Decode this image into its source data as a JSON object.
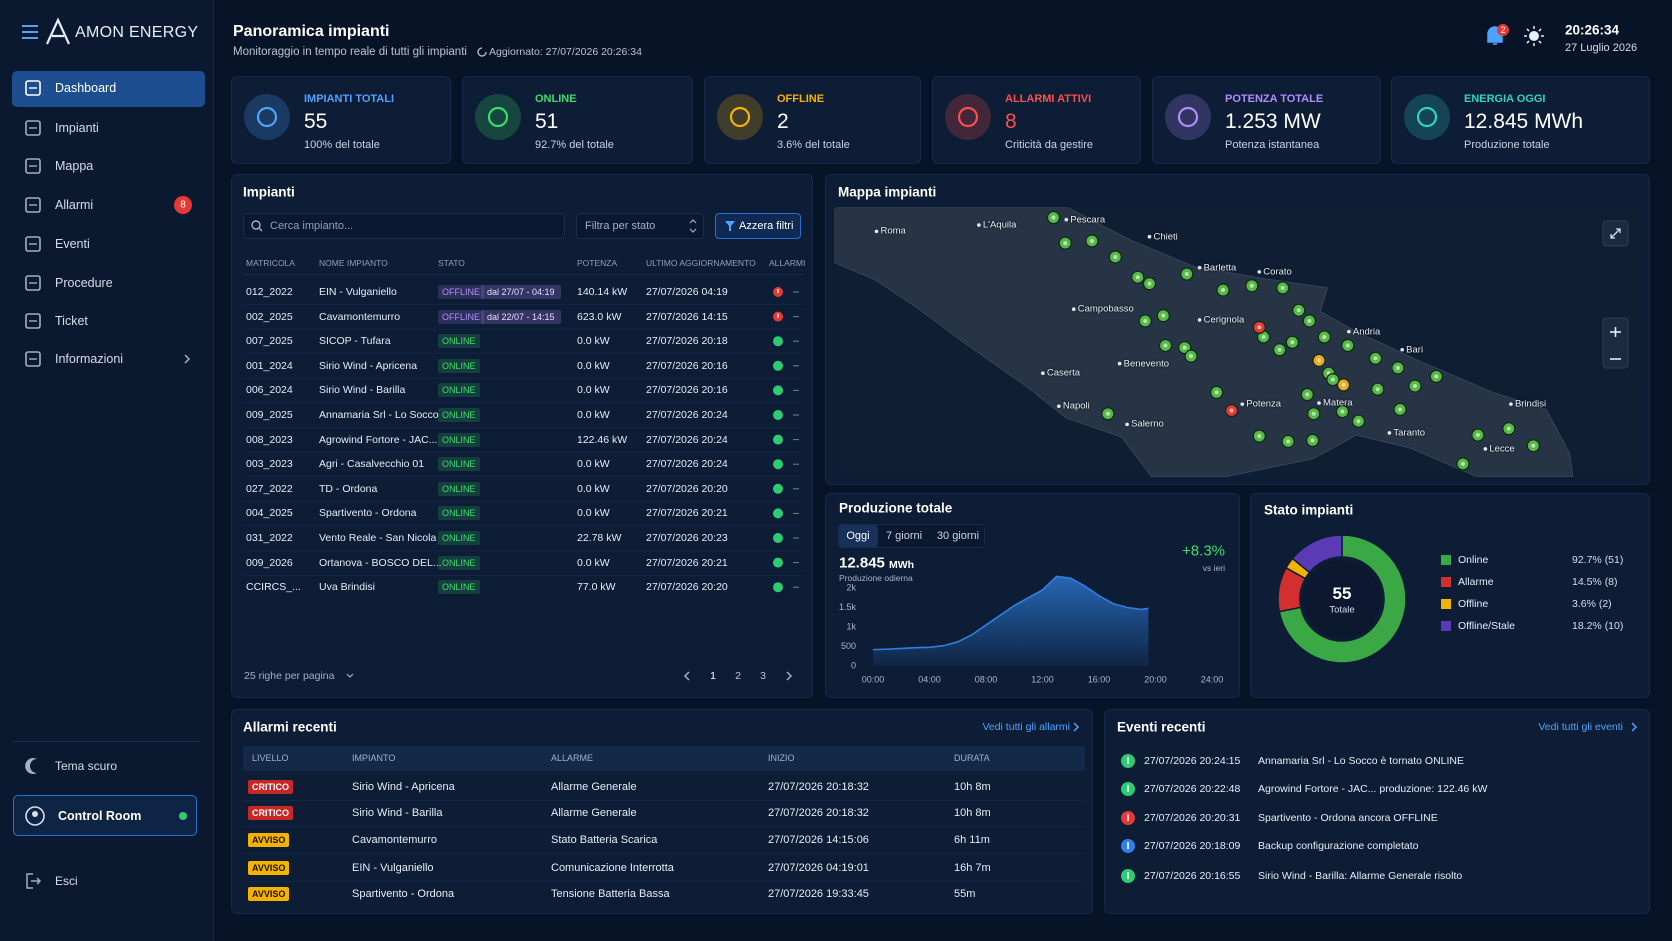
{
  "brand": "AMON ENERGY",
  "nav": [
    {
      "label": "Dashboard",
      "active": true
    },
    {
      "label": "Impianti"
    },
    {
      "label": "Mappa"
    },
    {
      "label": "Allarmi",
      "badge": "8"
    },
    {
      "label": "Eventi"
    },
    {
      "label": "Procedure"
    },
    {
      "label": "Ticket"
    },
    {
      "label": "Informazioni"
    }
  ],
  "sidebar_footer": {
    "theme": "Tema scuro",
    "user": "Control Room",
    "logout": "Esci"
  },
  "header": {
    "title": "Panoramica impianti",
    "subtitle": "Monitoraggio in tempo reale di tutti gli impianti",
    "updated": "Aggiornato: 27/07/2026 20:26:34",
    "notifications": "2",
    "time": "20:26:34",
    "date": "27 Luglio 2026"
  },
  "kpis": [
    {
      "label": "IMPIANTI TOTALI",
      "value": "55",
      "note": "100% del totale",
      "color": "#4da3ff"
    },
    {
      "label": "ONLINE",
      "value": "51",
      "note": "92.7% del totale",
      "color": "#3ddc6a"
    },
    {
      "label": "OFFLINE",
      "value": "2",
      "note": "3.6% del totale",
      "color": "#f5b301"
    },
    {
      "label": "ALLARMI ATTIVI",
      "value": "8",
      "note": "Criticità da gestire",
      "color": "#ff4d4d",
      "value_color": "#ff4d4d"
    },
    {
      "label": "POTENZA TOTALE",
      "value": "1.253 MW",
      "note": "Potenza istantanea",
      "color": "#b08cff"
    },
    {
      "label": "ENERGIA OGGI",
      "value": "12.845 MWh",
      "note": "Produzione totale",
      "color": "#2ed3c6"
    }
  ],
  "plants": {
    "title": "Impianti",
    "search": "Cerca impianto...",
    "filter": "Filtra per stato",
    "reset": "Azzera filtri",
    "columns": [
      "MATRICOLA",
      "NOME IMPIANTO",
      "STATO",
      "POTENZA",
      "ULTIMO AGGIORNAMENTO",
      "ALLARMI"
    ],
    "rows": [
      {
        "id": "012_2022",
        "name": "EIN - Vulganiello",
        "status": "OFFLINE",
        "since": "dal 27/07 - 04:19",
        "power": "140.14 kW",
        "updated": "27/07/2026 04:19",
        "color": "#b48cff",
        "alarm_color": "#e53935"
      },
      {
        "id": "002_2025",
        "name": "Cavamontemurro",
        "status": "OFFLINE",
        "since": "dal 22/07 - 14:15",
        "power": "623.0 kW",
        "updated": "27/07/2026 14:15",
        "color": "#b48cff",
        "alarm_color": "#e53935"
      },
      {
        "id": "007_2025",
        "name": "SICOP - Tufara",
        "status": "ONLINE",
        "power": "0.0 kW",
        "updated": "27/07/2026 20:18",
        "color": "#3ddc6a",
        "alarm_color": "#2ecc71"
      },
      {
        "id": "001_2024",
        "name": "Sirio Wind - Apricena",
        "status": "ONLINE",
        "power": "0.0 kW",
        "updated": "27/07/2026 20:16",
        "color": "#3ddc6a",
        "alarm_color": "#2ecc71"
      },
      {
        "id": "006_2024",
        "name": "Sirio Wind - Barilla",
        "status": "ONLINE",
        "power": "0.0 kW",
        "updated": "27/07/2026 20:16",
        "color": "#3ddc6a",
        "alarm_color": "#2ecc71"
      },
      {
        "id": "009_2025",
        "name": "Annamaria Srl - Lo Socco",
        "status": "ONLINE",
        "power": "0.0 kW",
        "updated": "27/07/2026 20:24",
        "color": "#3ddc6a",
        "alarm_color": "#2ecc71"
      },
      {
        "id": "008_2023",
        "name": "Agrowind Fortore - JAC...",
        "status": "ONLINE",
        "power": "122.46 kW",
        "updated": "27/07/2026 20:24",
        "color": "#3ddc6a",
        "alarm_color": "#2ecc71"
      },
      {
        "id": "003_2023",
        "name": "Agri - Casalvecchio 01",
        "status": "ONLINE",
        "power": "0.0 kW",
        "updated": "27/07/2026 20:24",
        "color": "#3ddc6a",
        "alarm_color": "#2ecc71"
      },
      {
        "id": "027_2022",
        "name": "TD - Ordona",
        "status": "ONLINE",
        "power": "0.0 kW",
        "updated": "27/07/2026 20:20",
        "color": "#3ddc6a",
        "alarm_color": "#2ecc71"
      },
      {
        "id": "004_2025",
        "name": "Spartivento - Ordona",
        "status": "ONLINE",
        "power": "0.0 kW",
        "updated": "27/07/2026 20:21",
        "color": "#3ddc6a",
        "alarm_color": "#2ecc71"
      },
      {
        "id": "031_2022",
        "name": "Vento Reale - San Nicola",
        "status": "ONLINE",
        "power": "22.78 kW",
        "updated": "27/07/2026 20:23",
        "color": "#3ddc6a",
        "alarm_color": "#2ecc71"
      },
      {
        "id": "009_2026",
        "name": "Ortanova - BOSCO DEL...",
        "status": "ONLINE",
        "power": "0.0 kW",
        "updated": "27/07/2026 20:21",
        "color": "#3ddc6a",
        "alarm_color": "#2ecc71"
      },
      {
        "id": "CCIRCS_...",
        "name": "Uva Brindisi",
        "status": "ONLINE",
        "power": "77.0 kW",
        "updated": "27/07/2026 20:20",
        "color": "#3ddc6a",
        "alarm_color": "#2ecc71"
      }
    ],
    "page_size": "25 righe per pagina",
    "pages": [
      "1",
      "2",
      "3"
    ]
  },
  "map": {
    "title": "Mappa impianti",
    "cities": [
      "Roma",
      "L'Aquila",
      "Pescara",
      "Chieti",
      "Barletta",
      "Corato",
      "Campobasso",
      "Cerignola",
      "Andria",
      "Bari",
      "Caserta",
      "Benevento",
      "Napoli",
      "Potenza",
      "Matera",
      "Salerno",
      "Brindisi",
      "Taranto",
      "Lecce"
    ]
  },
  "chart_data": [
    {
      "type": "area",
      "title": "Produzione totale",
      "tabs": [
        "Oggi",
        "7 giorni",
        "30 giorni"
      ],
      "total": "12.845",
      "unit": "MWh",
      "total_label": "Produzione odierna",
      "change": "+8.3%",
      "change_label": "vs ieri",
      "x": [
        0,
        1,
        2,
        3,
        4,
        5,
        6,
        7,
        8,
        9,
        10,
        11,
        12,
        13,
        14,
        15,
        16,
        17,
        18,
        19,
        19.5
      ],
      "values": [
        420,
        430,
        450,
        470,
        480,
        520,
        620,
        800,
        1050,
        1300,
        1550,
        1750,
        1950,
        2300,
        2250,
        2050,
        1800,
        1600,
        1500,
        1450,
        1480
      ],
      "color": "#2f7fe0",
      "xlim": [
        0,
        24
      ],
      "xticks": [
        {
          "value": 0,
          "label": "00:00"
        },
        {
          "value": 4,
          "label": "04:00"
        },
        {
          "value": 8,
          "label": "08:00"
        },
        {
          "value": 12,
          "label": "12:00"
        },
        {
          "value": 16,
          "label": "16:00"
        },
        {
          "value": 20,
          "label": "20:00"
        },
        {
          "value": 24,
          "label": "24:00"
        }
      ],
      "ylim": [
        0,
        2500
      ],
      "yticks": [
        0,
        500,
        {
          "value": 1000,
          "label": "1k"
        },
        {
          "value": 1500,
          "label": "1.5k"
        },
        {
          "value": 2000,
          "label": "2k"
        }
      ]
    },
    {
      "type": "donut",
      "title": "Stato impianti",
      "center_value": "55",
      "center_label": "Totale",
      "categories": [
        "Online",
        "Allarme",
        "Offline",
        "Offline/Stale"
      ],
      "values": [
        51,
        8,
        2,
        10
      ],
      "value_labels": [
        "92.7% (51)",
        "14.5% (8)",
        "3.6% (2)",
        "18.2% (10)"
      ],
      "colors": [
        "#3aa845",
        "#d32f2f",
        "#f5b301",
        "#5b3bb5"
      ]
    }
  ],
  "alarms": {
    "title": "Allarmi recenti",
    "link": "Vedi tutti gli allarmi",
    "columns": [
      "LIVELLO",
      "IMPIANTO",
      "ALLARME",
      "INIZIO",
      "DURATA"
    ],
    "rows": [
      {
        "level": "CRITICO",
        "color": "#c62828",
        "plant": "Sirio Wind - Apricena",
        "alarm": "Allarme Generale",
        "start": "27/07/2026 20:18:32",
        "duration": "10h 8m"
      },
      {
        "level": "CRITICO",
        "color": "#c62828",
        "plant": "Sirio Wind - Barilla",
        "alarm": "Allarme Generale",
        "start": "27/07/2026 20:18:32",
        "duration": "10h 8m"
      },
      {
        "level": "AVVISO",
        "color": "#f5b301",
        "plant": "Cavamontemurro",
        "alarm": "Stato Batteria Scarica",
        "start": "27/07/2026 14:15:06",
        "duration": "6h 11m"
      },
      {
        "level": "AVVISO",
        "color": "#f5b301",
        "plant": "EIN - Vulganiello",
        "alarm": "Comunicazione Interrotta",
        "start": "27/07/2026 04:19:01",
        "duration": "16h 7m"
      },
      {
        "level": "AVVISO",
        "color": "#f5b301",
        "plant": "Spartivento - Ordona",
        "alarm": "Tensione Batteria Bassa",
        "start": "27/07/2026 19:33:45",
        "duration": "55m"
      }
    ]
  },
  "events": {
    "title": "Eventi recenti",
    "link": "Vedi tutti gli eventi",
    "rows": [
      {
        "time": "27/07/2026 20:24:15",
        "text": "Annamaria Srl - Lo Socco è tornato ONLINE",
        "color": "#2ecc71"
      },
      {
        "time": "27/07/2026 20:22:48",
        "text": "Agrowind Fortore - JAC... produzione: 122.46 kW",
        "color": "#2ecc71"
      },
      {
        "time": "27/07/2026 20:20:31",
        "text": "Spartivento - Ordona ancora OFFLINE",
        "color": "#e53935"
      },
      {
        "time": "27/07/2026 20:18:09",
        "text": "Backup configurazione completato",
        "color": "#2f80ed"
      },
      {
        "time": "27/07/2026 20:16:55",
        "text": "Sirio Wind - Barilla: Allarme Generale risolto",
        "color": "#2ecc71"
      }
    ]
  }
}
